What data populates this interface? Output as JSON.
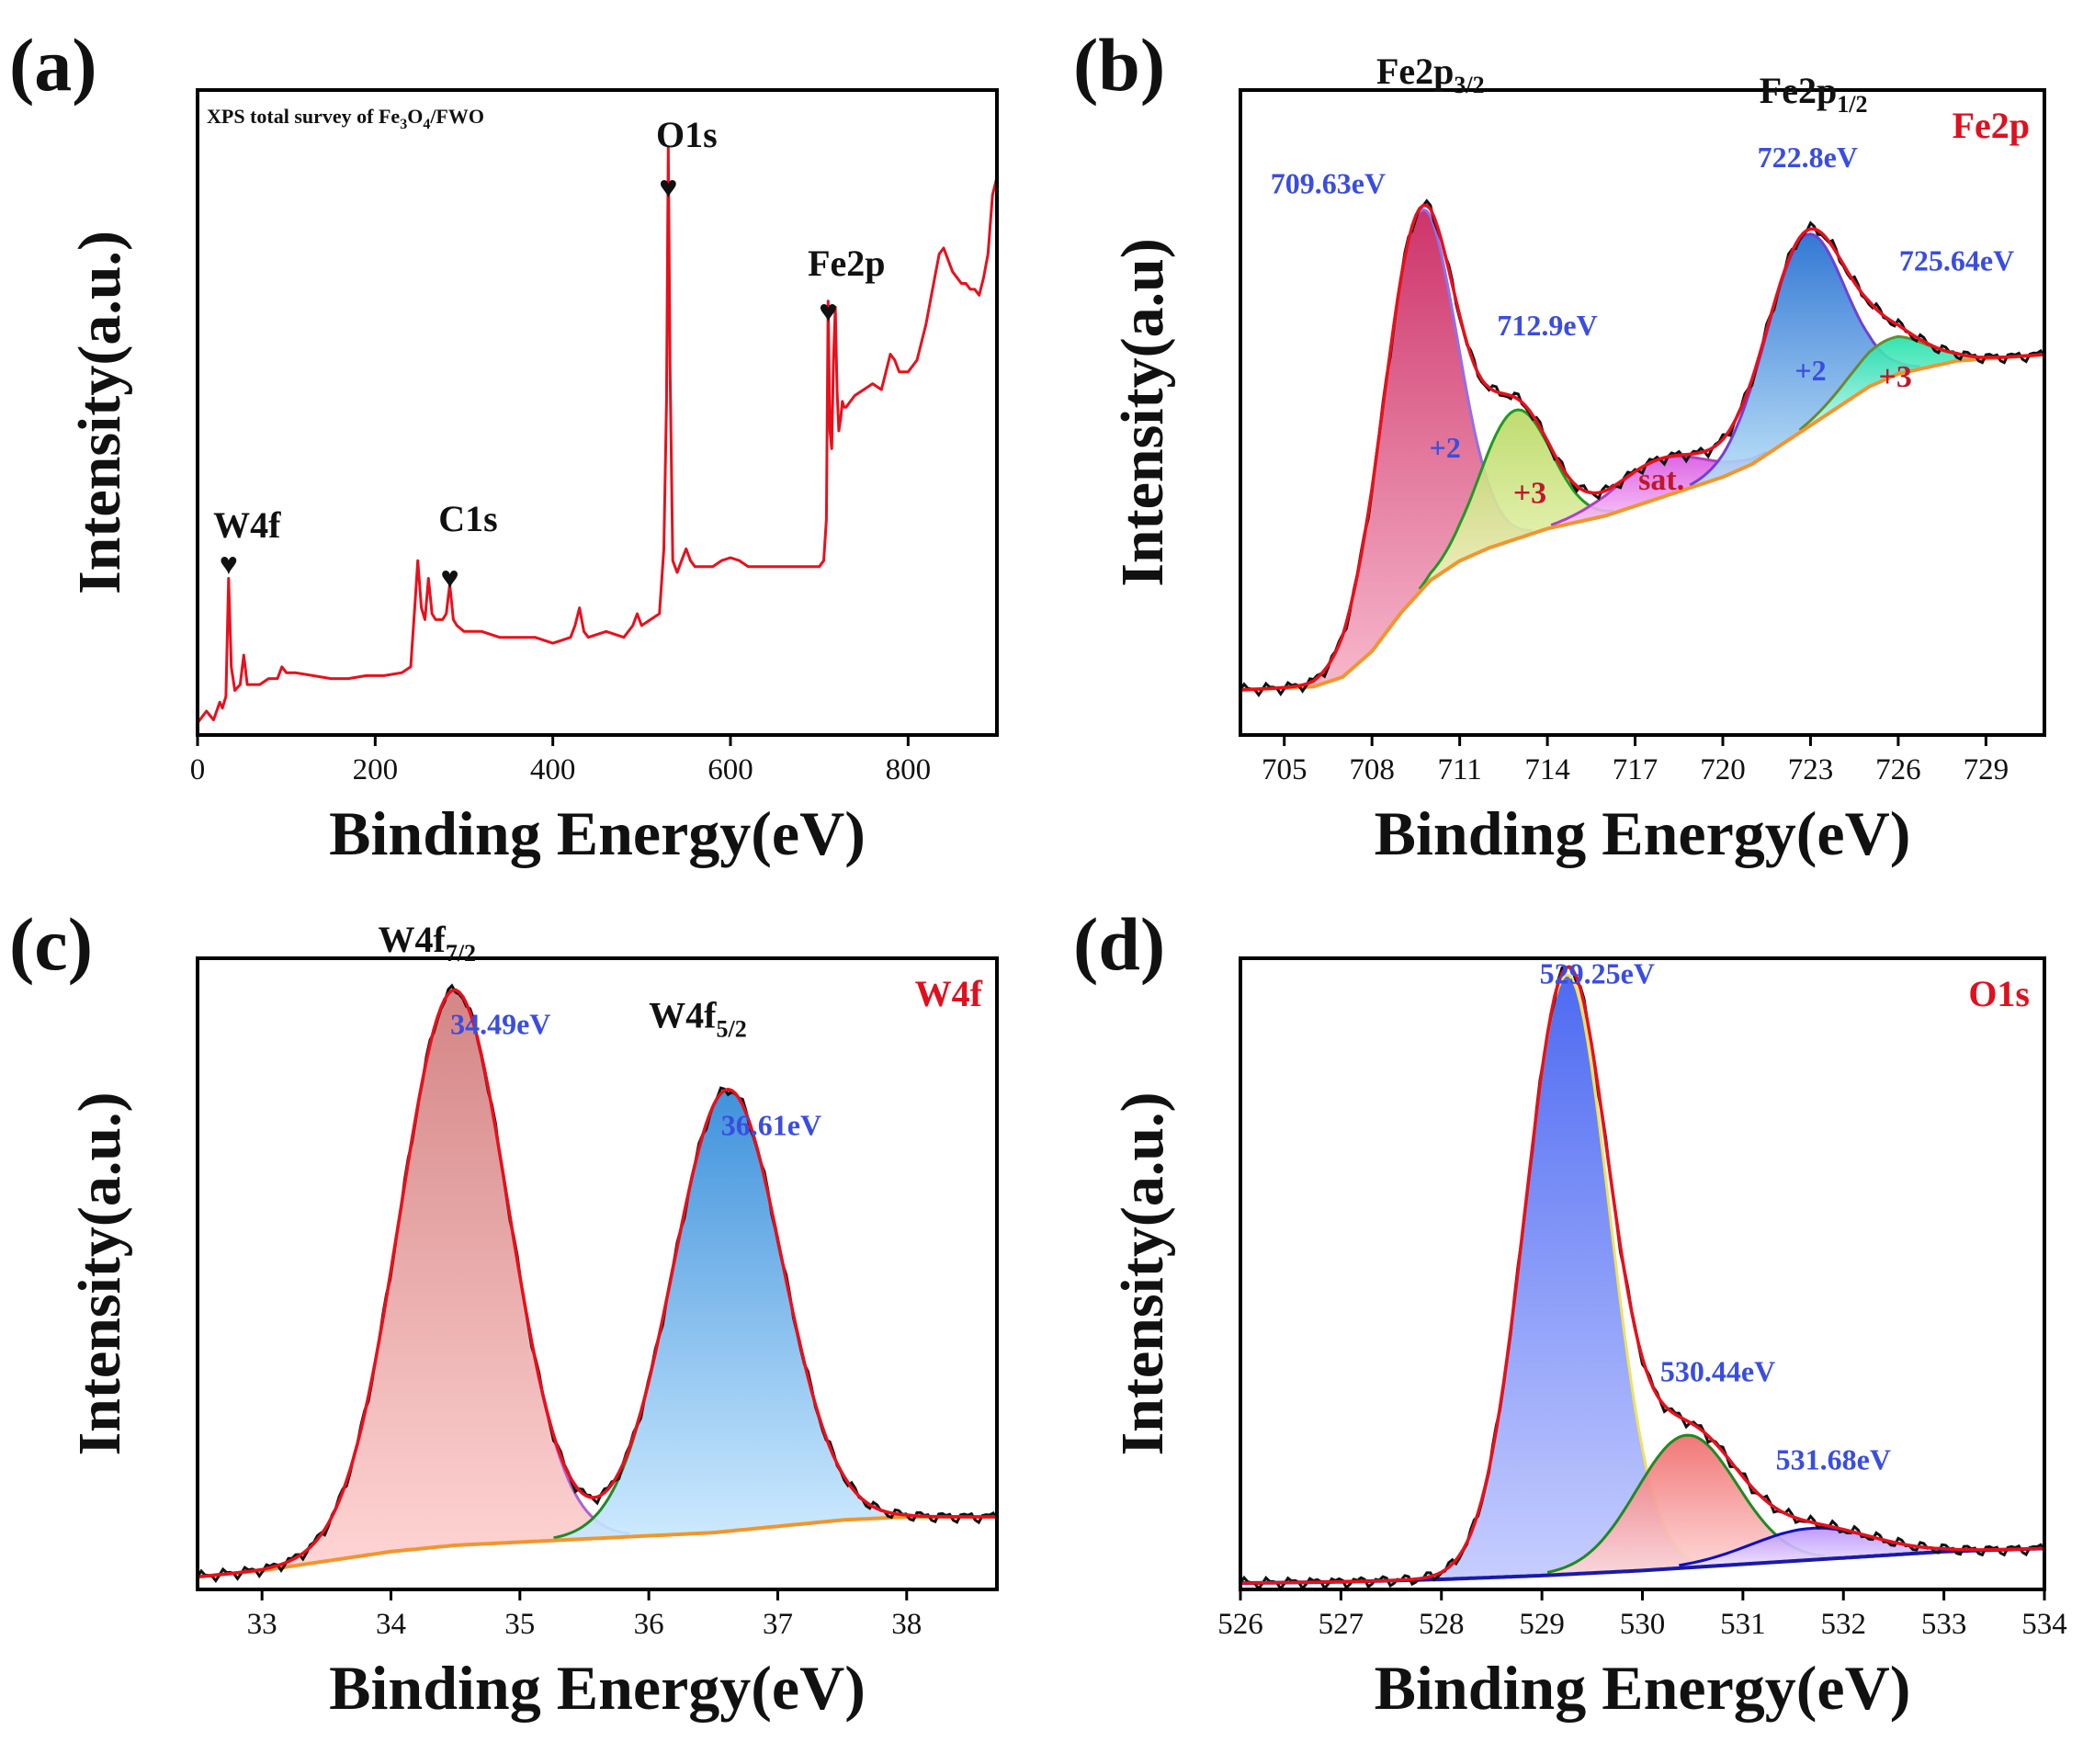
{
  "figure": {
    "panels": {
      "a": {
        "label": "(a)"
      },
      "b": {
        "label": "(b)"
      },
      "c": {
        "label": "(c)"
      },
      "d": {
        "label": "(d)"
      }
    }
  },
  "chart_data": [
    {
      "id": "a",
      "type": "line",
      "title": "XPS total survey of Fe3O4/FWO",
      "title_parts": {
        "pre": "XPS total survey of Fe",
        "sub1": "3",
        "mid": "O",
        "sub2": "4",
        "post": "/FWO"
      },
      "xlabel": "Binding Energy(eV)",
      "ylabel": "Intensity(a.u.)",
      "xlim": [
        0,
        900
      ],
      "ylim": [
        0,
        1
      ],
      "xticks": [
        0,
        200,
        400,
        600,
        800
      ],
      "xtick_labels": [
        "0",
        "200",
        "400",
        "600",
        "800"
      ],
      "series": [
        {
          "name": "survey",
          "color": "#e8101c",
          "x": [
            0,
            10,
            18,
            25,
            28,
            32,
            35,
            38,
            42,
            48,
            52,
            56,
            60,
            70,
            80,
            90,
            95,
            100,
            110,
            130,
            150,
            170,
            190,
            210,
            230,
            240,
            245,
            248,
            252,
            256,
            260,
            264,
            268,
            272,
            276,
            280,
            284,
            288,
            292,
            300,
            320,
            340,
            360,
            380,
            400,
            410,
            420,
            425,
            430,
            435,
            440,
            460,
            480,
            490,
            495,
            500,
            510,
            520,
            525,
            528,
            530,
            532,
            535,
            540,
            545,
            550,
            555,
            560,
            570,
            580,
            590,
            600,
            610,
            620,
            640,
            660,
            680,
            700,
            705,
            708,
            710,
            712,
            714,
            716,
            718,
            720,
            722,
            724,
            726,
            728,
            730,
            735,
            740,
            750,
            760,
            770,
            775,
            780,
            785,
            790,
            800,
            810,
            820,
            830,
            835,
            840,
            845,
            850,
            855,
            860,
            865,
            870,
            875,
            880,
            885,
            890,
            895,
            900
          ],
          "y": [
            0.005,
            0.025,
            0.01,
            0.04,
            0.03,
            0.05,
            0.25,
            0.1,
            0.06,
            0.07,
            0.12,
            0.07,
            0.07,
            0.07,
            0.08,
            0.08,
            0.1,
            0.09,
            0.09,
            0.085,
            0.08,
            0.08,
            0.085,
            0.085,
            0.09,
            0.1,
            0.21,
            0.28,
            0.2,
            0.18,
            0.25,
            0.19,
            0.18,
            0.18,
            0.18,
            0.19,
            0.24,
            0.18,
            0.17,
            0.16,
            0.16,
            0.15,
            0.15,
            0.15,
            0.14,
            0.145,
            0.15,
            0.17,
            0.2,
            0.16,
            0.15,
            0.16,
            0.15,
            0.17,
            0.19,
            0.17,
            0.18,
            0.19,
            0.3,
            0.55,
            0.98,
            0.6,
            0.28,
            0.26,
            0.28,
            0.3,
            0.28,
            0.27,
            0.27,
            0.27,
            0.28,
            0.285,
            0.28,
            0.27,
            0.27,
            0.27,
            0.27,
            0.27,
            0.28,
            0.35,
            0.72,
            0.5,
            0.47,
            0.62,
            0.71,
            0.57,
            0.5,
            0.52,
            0.55,
            0.54,
            0.54,
            0.55,
            0.56,
            0.57,
            0.58,
            0.57,
            0.6,
            0.63,
            0.62,
            0.6,
            0.6,
            0.62,
            0.68,
            0.76,
            0.8,
            0.81,
            0.79,
            0.77,
            0.76,
            0.75,
            0.75,
            0.74,
            0.74,
            0.73,
            0.76,
            0.8,
            0.9,
            0.93
          ]
        }
      ],
      "annotations": [
        {
          "text": "W4f",
          "x": 35,
          "mark": "♥"
        },
        {
          "text": "C1s",
          "x": 284,
          "mark": "♥"
        },
        {
          "text": "O1s",
          "x": 530,
          "mark": "♥"
        },
        {
          "text": "Fe2p",
          "x": 710,
          "mark": "♥"
        }
      ]
    },
    {
      "id": "b",
      "type": "area",
      "title": "Fe2p",
      "xlabel": "Binding Energy(eV)",
      "ylabel": "Intensity(a.u)",
      "xlim": [
        703.5,
        731
      ],
      "ylim": [
        0,
        1
      ],
      "xticks": [
        705,
        708,
        711,
        714,
        717,
        720,
        723,
        726,
        729
      ],
      "xtick_labels": [
        "705",
        "708",
        "711",
        "714",
        "717",
        "720",
        "723",
        "726",
        "729"
      ],
      "background": {
        "color": "#f0962e",
        "x": [
          703.5,
          706,
          707,
          708,
          709,
          710,
          711,
          712,
          714,
          716,
          718,
          720,
          721,
          722,
          723,
          724,
          725,
          726,
          728,
          731
        ],
        "y": [
          0.07,
          0.075,
          0.09,
          0.13,
          0.19,
          0.24,
          0.27,
          0.29,
          0.32,
          0.34,
          0.37,
          0.4,
          0.42,
          0.45,
          0.48,
          0.51,
          0.54,
          0.56,
          0.58,
          0.59
        ]
      },
      "components": [
        {
          "name": "+2",
          "center": 709.63,
          "amp": 0.59,
          "sigma": 1.25,
          "color": "#d42a64",
          "label_x": 710.5,
          "label_y": 0.43
        },
        {
          "name": "+3",
          "center": 712.9,
          "amp": 0.2,
          "sigma": 1.2,
          "color": "#c8e070",
          "label_x": 713.4,
          "label_y": 0.36
        },
        {
          "name": "sat.",
          "center": 717.8,
          "amp": 0.06,
          "sigma": 1.6,
          "color": "#e060e8",
          "label_x": 717.9,
          "label_y": 0.38
        },
        {
          "name": "+2",
          "center": 722.8,
          "amp": 0.3,
          "sigma": 1.35,
          "color": "#2a78d8",
          "label_x": 723,
          "label_y": 0.55
        },
        {
          "name": "+3",
          "center": 725.64,
          "amp": 0.06,
          "sigma": 1.3,
          "color": "#32e0b0",
          "label_x": 725.9,
          "label_y": 0.54
        }
      ],
      "peak_labels": [
        {
          "text": "709.63eV",
          "x": 706.5,
          "y": 0.84
        },
        {
          "text": "712.9eV",
          "x": 714.0,
          "y": 0.62
        },
        {
          "text": "722.8eV",
          "x": 722.9,
          "y": 0.88
        },
        {
          "text": "725.64eV",
          "x": 728.0,
          "y": 0.72
        }
      ],
      "group_labels": [
        {
          "text": "Fe2p",
          "sub": "3/2",
          "x": 710.0,
          "y": 1.01
        },
        {
          "text": "Fe2p",
          "sub": "1/2",
          "x": 723.1,
          "y": 0.98
        }
      ]
    },
    {
      "id": "c",
      "type": "area",
      "title": "W4f",
      "xlabel": "Binding Energy(eV)",
      "ylabel": "Intensity(a.u.)",
      "xlim": [
        32.5,
        38.7
      ],
      "ylim": [
        0,
        1
      ],
      "xticks": [
        33,
        34,
        35,
        36,
        37,
        38
      ],
      "xtick_labels": [
        "33",
        "34",
        "35",
        "36",
        "37",
        "38"
      ],
      "background": {
        "color": "#f0962e",
        "x": [
          32.5,
          33.0,
          33.5,
          34.0,
          34.5,
          35.0,
          35.5,
          36.0,
          36.5,
          37.0,
          37.5,
          38.0,
          38.7
        ],
        "y": [
          0.02,
          0.03,
          0.045,
          0.06,
          0.07,
          0.075,
          0.08,
          0.085,
          0.09,
          0.1,
          0.11,
          0.115,
          0.115
        ]
      },
      "components": [
        {
          "name": "W4f7/2",
          "center": 34.49,
          "amp": 0.88,
          "sigma": 0.42,
          "color": "#d88080"
        },
        {
          "name": "W4f5/2",
          "center": 36.61,
          "amp": 0.7,
          "sigma": 0.42,
          "color": "#3a9ae0"
        }
      ],
      "peak_labels": [
        {
          "text": "34.49eV",
          "x": 34.85,
          "y": 0.88
        },
        {
          "text": "36.61eV",
          "x": 36.95,
          "y": 0.72
        }
      ],
      "group_labels": [
        {
          "text": "W4f",
          "sub": "7/2",
          "x": 34.28,
          "y": 1.01
        },
        {
          "text": "W4f",
          "sub": "5/2",
          "x": 36.38,
          "y": 0.89
        }
      ]
    },
    {
      "id": "d",
      "type": "area",
      "title": "O1s",
      "xlabel": "Binding Energy(eV)",
      "ylabel": "Intensity(a.u.)",
      "xlim": [
        526,
        534
      ],
      "ylim": [
        0,
        1
      ],
      "xticks": [
        526,
        527,
        528,
        529,
        530,
        531,
        532,
        533,
        534
      ],
      "xtick_labels": [
        "526",
        "527",
        "528",
        "529",
        "530",
        "531",
        "532",
        "533",
        "534"
      ],
      "background": {
        "color": "#1a1aa8",
        "x": [
          526,
          527,
          528,
          529,
          530,
          531,
          532,
          533,
          534
        ],
        "y": [
          0.01,
          0.012,
          0.016,
          0.022,
          0.03,
          0.04,
          0.05,
          0.06,
          0.065
        ]
      },
      "components": [
        {
          "name": "529.25",
          "center": 529.25,
          "amp": 0.95,
          "sigma": 0.42,
          "color": "#4a6af0"
        },
        {
          "name": "530.44",
          "center": 530.44,
          "amp": 0.21,
          "sigma": 0.5,
          "color": "#f08080"
        },
        {
          "name": "531.68",
          "center": 531.68,
          "amp": 0.05,
          "sigma": 0.6,
          "color": "#c8a0ff"
        }
      ],
      "peak_labels": [
        {
          "text": "529.25eV",
          "x": 529.55,
          "y": 0.96
        },
        {
          "text": "530.44eV",
          "x": 530.75,
          "y": 0.33
        },
        {
          "text": "531.68eV",
          "x": 531.9,
          "y": 0.19
        }
      ]
    }
  ]
}
